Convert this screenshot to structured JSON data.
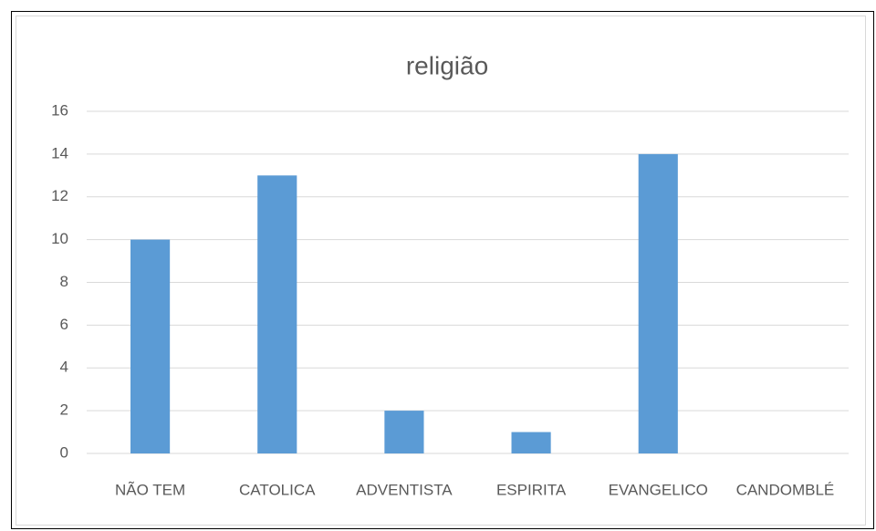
{
  "chart_data": {
    "type": "bar",
    "title": "religião",
    "categories": [
      "NÃO TEM",
      "CATOLICA",
      "ADVENTISTA",
      "ESPIRITA",
      "EVANGELICO",
      "CANDOMBLÉ"
    ],
    "values": [
      10,
      13,
      2,
      1,
      14,
      0
    ],
    "color": "#5b9bd5",
    "ylim": [
      0,
      16
    ],
    "yticks": [
      0,
      2,
      4,
      6,
      8,
      10,
      12,
      14,
      16
    ],
    "grid": true
  }
}
